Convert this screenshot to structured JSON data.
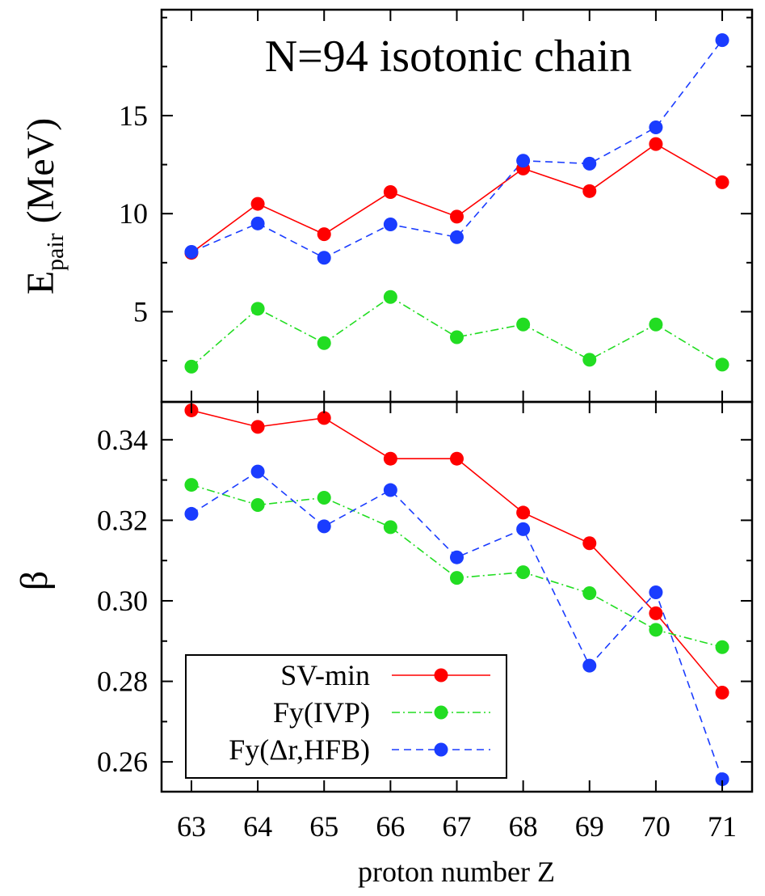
{
  "chart_data": {
    "type": "line",
    "title": "N=94 isotonic chain",
    "xlabel": "proton number Z",
    "x": [
      63,
      64,
      65,
      66,
      67,
      68,
      69,
      70,
      71
    ],
    "x_ticks": [
      "63",
      "64",
      "65",
      "66",
      "67",
      "68",
      "69",
      "70",
      "71"
    ],
    "xlim": [
      62.55,
      71.45
    ],
    "colors": {
      "SV-min": "#ff0000",
      "Fy(IVP)": "#22dd22",
      "Fy(Δr,HFB)": "#1a3cff"
    },
    "legend": {
      "placement": "bottom-left of lower panel",
      "entries": [
        "SV-min",
        "Fy(IVP)",
        "Fy(Δr,HFB)"
      ]
    },
    "panels": [
      {
        "id": "top",
        "ylabel_main": "E",
        "ylabel_sub": "pair",
        "ylabel_unit": " (MeV)",
        "ylim": [
          0.4,
          20.4
        ],
        "y_ticks": [
          5,
          10,
          15
        ],
        "y_tick_labels": [
          "5",
          "10",
          "15"
        ],
        "series": [
          {
            "name": "SV-min",
            "values": [
              8.0,
              10.5,
              8.95,
              11.1,
              9.85,
              12.3,
              11.15,
              13.55,
              11.6
            ]
          },
          {
            "name": "Fy(IVP)",
            "values": [
              2.2,
              5.15,
              3.4,
              5.75,
              3.7,
              4.35,
              2.55,
              4.35,
              2.3
            ]
          },
          {
            "name": "Fy(Δr,HFB)",
            "values": [
              8.05,
              9.5,
              7.75,
              9.45,
              8.8,
              12.7,
              12.55,
              14.4,
              18.85
            ]
          }
        ]
      },
      {
        "id": "bottom",
        "ylabel_main": "β",
        "ylim": [
          0.2526,
          0.3494
        ],
        "y_ticks": [
          0.26,
          0.28,
          0.3,
          0.32,
          0.34
        ],
        "y_tick_labels": [
          "0.26",
          "0.28",
          "0.30",
          "0.32",
          "0.34"
        ],
        "series": [
          {
            "name": "SV-min",
            "values": [
              0.3473,
              0.3432,
              0.3454,
              0.3353,
              0.3353,
              0.3219,
              0.3143,
              0.2969,
              0.2772
            ]
          },
          {
            "name": "Fy(IVP)",
            "values": [
              0.3288,
              0.3238,
              0.3256,
              0.3183,
              0.3057,
              0.3071,
              0.3019,
              0.2928,
              0.2885
            ]
          },
          {
            "name": "Fy(Δr,HFB)",
            "values": [
              0.3216,
              0.3321,
              0.3185,
              0.3275,
              0.3108,
              0.3178,
              0.2839,
              0.3021,
              0.2557
            ]
          }
        ]
      }
    ]
  }
}
